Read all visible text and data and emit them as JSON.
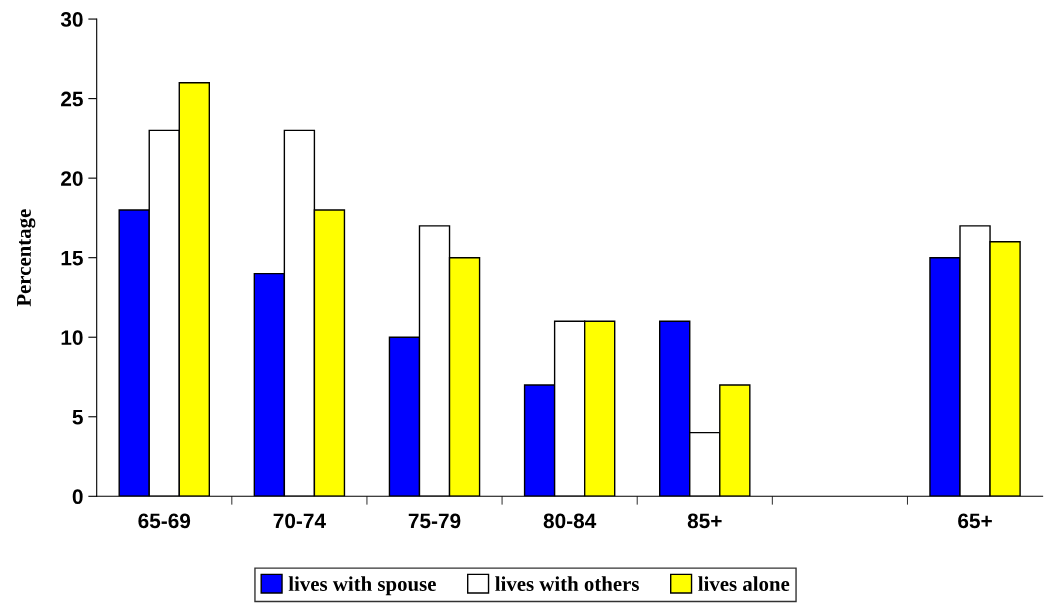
{
  "chart_data": {
    "type": "bar",
    "ylabel": "Percentage",
    "categories": [
      "65-69",
      "70-74",
      "75-79",
      "80-84",
      "85+",
      null,
      "65+"
    ],
    "series": [
      {
        "name": "lives with spouse",
        "color": "#0000ff",
        "values": [
          18,
          14,
          10,
          7,
          11,
          null,
          15
        ]
      },
      {
        "name": "lives with others",
        "color": "#ffffff",
        "values": [
          23,
          23,
          17,
          11,
          4,
          null,
          17
        ]
      },
      {
        "name": "lives alone",
        "color": "#ffff00",
        "values": [
          26,
          18,
          15,
          11,
          7,
          null,
          16
        ]
      }
    ],
    "ylim": [
      0,
      30
    ],
    "yticks": [
      0,
      5,
      10,
      15,
      20,
      25,
      30
    ],
    "grid": false,
    "legend": "bottom"
  }
}
